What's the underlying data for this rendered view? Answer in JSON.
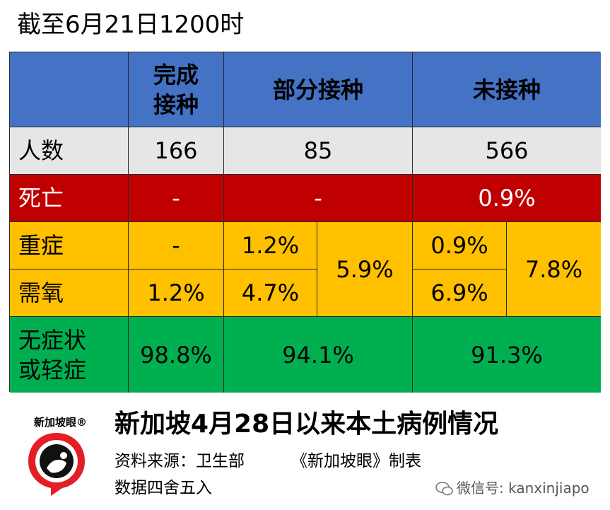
{
  "title": "截至6月21日1200时",
  "chart_data": {
    "type": "table",
    "columns": [
      "",
      "完成接种",
      "部分接种",
      "未接种"
    ],
    "header": {
      "complete": [
        "完成",
        "接种"
      ],
      "partial": "部分接种",
      "none": "未接种"
    },
    "rows": {
      "count": {
        "label": "人数",
        "complete": "166",
        "partial": "85",
        "none": "566"
      },
      "death": {
        "label": "死亡",
        "complete": "-",
        "partial": "-",
        "none": "0.9%"
      },
      "severe": {
        "label": "重症",
        "complete": "-",
        "partial": "1.2%",
        "none": "0.9%"
      },
      "oxygen": {
        "label": "需氧",
        "complete": "1.2%",
        "partial": "4.7%",
        "none": "6.9%"
      },
      "severe_oxygen_total": {
        "partial": "5.9%",
        "none": "7.8%"
      },
      "mild": {
        "label": [
          "无症状",
          "或轻症"
        ],
        "complete": "98.8%",
        "partial": "94.1%",
        "none": "91.3%"
      }
    },
    "colors": {
      "header": "#4472c4",
      "count": "#e7e6e6",
      "death": "#c00000",
      "severe": "#ffc000",
      "mild": "#00b050"
    }
  },
  "footer": {
    "title": "新加坡4月28日以来本土病例情况",
    "source": "资料来源：卫生部",
    "made_by": "《新加坡眼》制表",
    "note": "数据四舍五入",
    "logo_text": "新加坡眼®",
    "wechat": "微信号: kanxinjiapo"
  }
}
